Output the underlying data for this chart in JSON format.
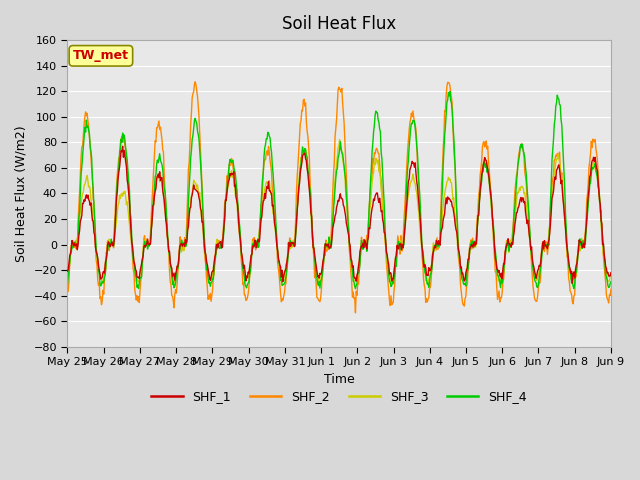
{
  "title": "Soil Heat Flux",
  "ylabel": "Soil Heat Flux (W/m2)",
  "xlabel": "Time",
  "ylim": [
    -80,
    160
  ],
  "yticks": [
    -80,
    -60,
    -40,
    -20,
    0,
    20,
    40,
    60,
    80,
    100,
    120,
    140,
    160
  ],
  "bg_color": "#d8d8d8",
  "plot_bg_color": "#e8e8e8",
  "line_colors": {
    "SHF_1": "#cc0000",
    "SHF_2": "#ff8800",
    "SHF_3": "#cccc00",
    "SHF_4": "#00cc00"
  },
  "annotation_text": "TW_met",
  "annotation_bg": "#ffff99",
  "annotation_border": "#888800",
  "annotation_text_color": "#cc0000",
  "xtick_labels": [
    "May 25",
    "May 26",
    "May 27",
    "May 28",
    "May 29",
    "May 30",
    "May 31",
    "Jun 1",
    "Jun 2",
    "Jun 3",
    "Jun 4",
    "Jun 5",
    "Jun 6",
    "Jun 7",
    "Jun 8",
    "Jun 9"
  ],
  "n_days": 15,
  "pts_per_day": 48
}
